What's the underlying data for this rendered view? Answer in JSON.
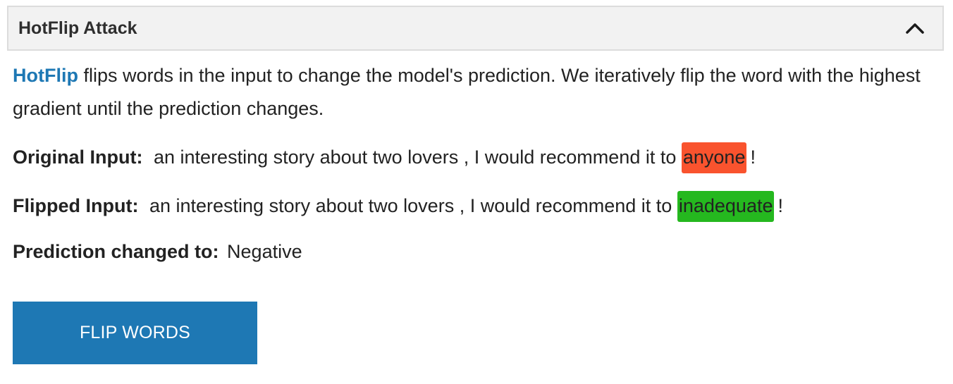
{
  "panel": {
    "title": "HotFlip Attack",
    "collapse_icon": "chevron-up-icon"
  },
  "description": {
    "link_text": "HotFlip",
    "text": " flips words in the input to change the model's prediction. We iteratively flip the word with the highest gradient until the prediction changes."
  },
  "original": {
    "label": "Original Input:",
    "prefix": "an interesting story about two lovers , I would recommend it to",
    "highlighted": "anyone",
    "suffix": "!",
    "highlight_color": "#f9532e"
  },
  "flipped": {
    "label": "Flipped Input:",
    "prefix": "an interesting story about two lovers , I would recommend it to",
    "highlighted": "inadequate",
    "suffix": "!",
    "highlight_color": "#25b81f"
  },
  "prediction": {
    "label": "Prediction changed to:",
    "value": "Negative"
  },
  "button": {
    "label": "FLIP WORDS",
    "color": "#1e78b4"
  }
}
